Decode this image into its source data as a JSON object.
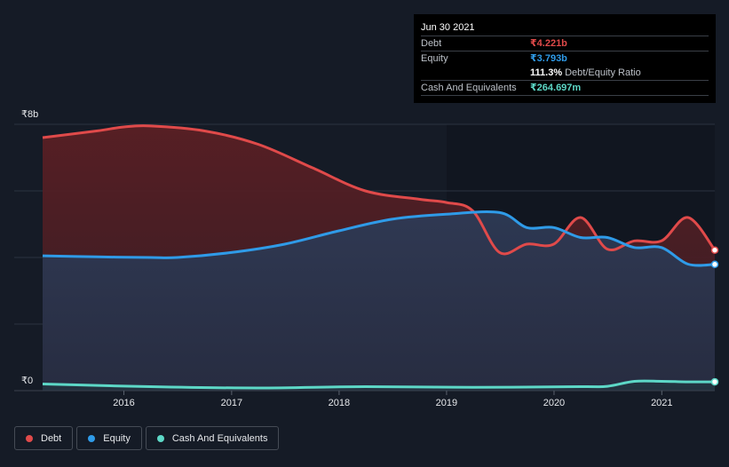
{
  "chart_data": {
    "type": "area",
    "y_unit_label_top": "₹8b",
    "y_unit_label_bottom": "₹0",
    "ylim": [
      0,
      8
    ],
    "y_gridlines": [
      0,
      2,
      4,
      6,
      8
    ],
    "x_ticks": [
      "2016",
      "2017",
      "2018",
      "2019",
      "2020",
      "2021"
    ],
    "x_range": [
      "2015-03-31",
      "2021-06-30"
    ],
    "grid": true,
    "legend_position": "bottom-left",
    "series": [
      {
        "name": "Debt",
        "color": "#e04a4a",
        "points": [
          [
            "2015-03-31",
            7.6
          ],
          [
            "2015-09-30",
            7.8
          ],
          [
            "2016-01-01",
            7.92
          ],
          [
            "2016-04-01",
            7.95
          ],
          [
            "2016-10-01",
            7.8
          ],
          [
            "2017-04-01",
            7.4
          ],
          [
            "2017-10-01",
            6.7
          ],
          [
            "2018-03-31",
            6.0
          ],
          [
            "2018-09-30",
            5.75
          ],
          [
            "2019-01-01",
            5.65
          ],
          [
            "2019-03-31",
            5.4
          ],
          [
            "2019-06-30",
            4.15
          ],
          [
            "2019-09-30",
            4.4
          ],
          [
            "2019-12-31",
            4.4
          ],
          [
            "2020-03-31",
            5.2
          ],
          [
            "2020-06-30",
            4.25
          ],
          [
            "2020-09-30",
            4.5
          ],
          [
            "2020-12-31",
            4.5
          ],
          [
            "2021-03-31",
            5.2
          ],
          [
            "2021-06-30",
            4.221
          ]
        ]
      },
      {
        "name": "Equity",
        "color": "#2f9be8",
        "points": [
          [
            "2015-03-31",
            4.05
          ],
          [
            "2015-09-30",
            4.02
          ],
          [
            "2016-03-31",
            4.0
          ],
          [
            "2016-06-30",
            4.0
          ],
          [
            "2016-12-31",
            4.15
          ],
          [
            "2017-06-30",
            4.4
          ],
          [
            "2017-12-31",
            4.8
          ],
          [
            "2018-06-30",
            5.15
          ],
          [
            "2018-12-31",
            5.3
          ],
          [
            "2019-06-30",
            5.35
          ],
          [
            "2019-09-30",
            4.9
          ],
          [
            "2019-12-31",
            4.9
          ],
          [
            "2020-03-31",
            4.6
          ],
          [
            "2020-06-30",
            4.6
          ],
          [
            "2020-09-30",
            4.3
          ],
          [
            "2020-12-31",
            4.3
          ],
          [
            "2021-03-31",
            3.8
          ],
          [
            "2021-06-30",
            3.793
          ]
        ]
      },
      {
        "name": "Cash And Equivalents",
        "color": "#5dd8c7",
        "points": [
          [
            "2015-03-31",
            0.2
          ],
          [
            "2016-03-31",
            0.12
          ],
          [
            "2017-03-31",
            0.08
          ],
          [
            "2018-03-31",
            0.12
          ],
          [
            "2019-03-31",
            0.1
          ],
          [
            "2020-03-31",
            0.12
          ],
          [
            "2020-06-30",
            0.13
          ],
          [
            "2020-09-30",
            0.28
          ],
          [
            "2020-12-31",
            0.28
          ],
          [
            "2021-03-31",
            0.265
          ],
          [
            "2021-06-30",
            0.265
          ]
        ]
      }
    ]
  },
  "tooltip": {
    "date": "Jun 30 2021",
    "debt_label": "Debt",
    "debt_value": "₹4.221b",
    "equity_label": "Equity",
    "equity_value": "₹3.793b",
    "ratio_value": "111.3%",
    "ratio_label": "Debt/Equity Ratio",
    "cash_label": "Cash And Equivalents",
    "cash_value": "₹264.697m"
  },
  "legend": {
    "debt": "Debt",
    "equity": "Equity",
    "cash": "Cash And Equivalents"
  },
  "colors": {
    "debt": "#e04a4a",
    "equity": "#2f9be8",
    "cash": "#5dd8c7",
    "background": "#151b26"
  }
}
